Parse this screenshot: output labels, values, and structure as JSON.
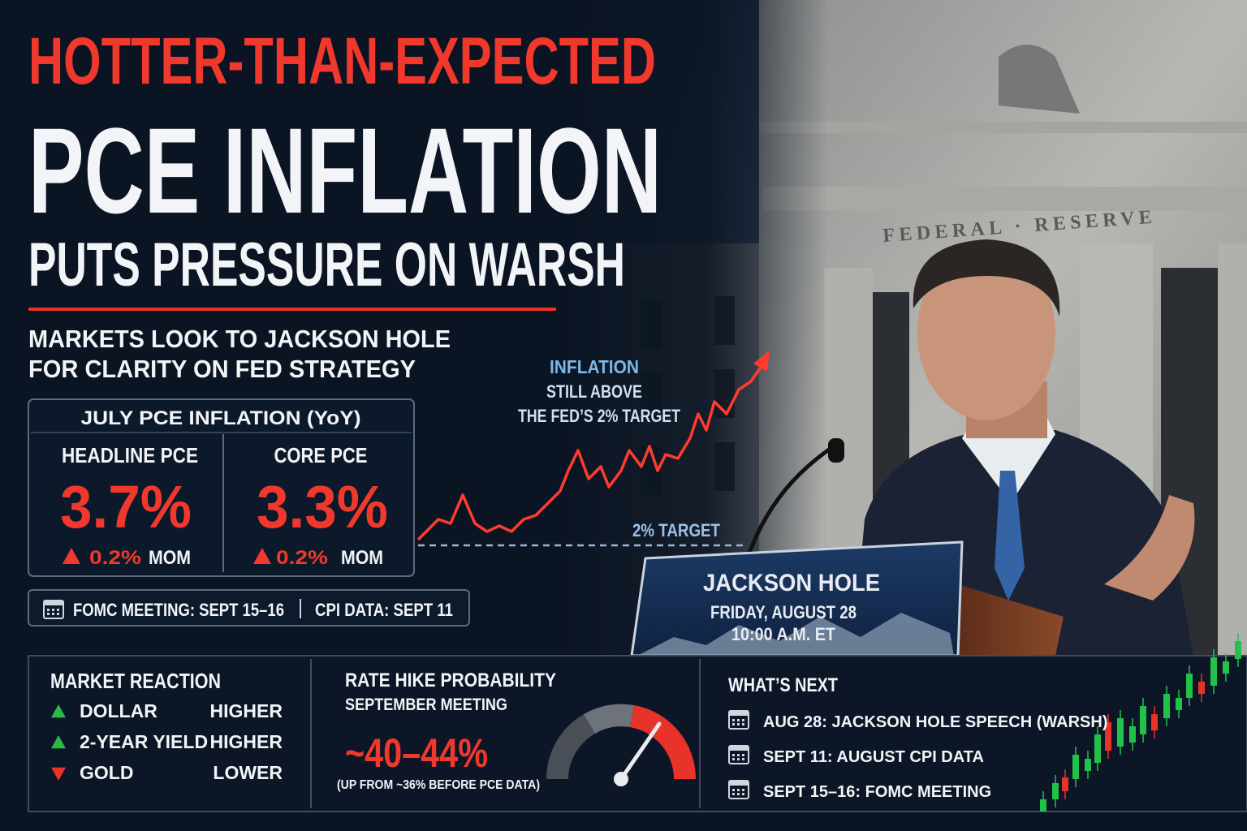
{
  "headline": {
    "line1": "HOTTER-THAN-EXPECTED",
    "line2": "PCE INFLATION",
    "line3": "PUTS PRESSURE ON WARSH"
  },
  "subheadline": {
    "line1": "MARKETS LOOK TO JACKSON HOLE",
    "line2": "FOR CLARITY ON FED STRATEGY"
  },
  "pce_box": {
    "title": "JULY PCE INFLATION (YoY)",
    "items": [
      {
        "label": "HEADLINE PCE",
        "value": "3.7%",
        "change": "0.2%",
        "change_unit": "MOM",
        "direction": "up"
      },
      {
        "label": "CORE PCE",
        "value": "3.3%",
        "change": "0.2%",
        "change_unit": "MOM",
        "direction": "up"
      }
    ]
  },
  "dates_bar": {
    "items": [
      "FOMC MEETING: SEPT 15–16",
      "CPI DATA: SEPT 11"
    ]
  },
  "chart_annotation": {
    "lines": [
      "INFLATION",
      "STILL ABOVE",
      "THE FED’S 2% TARGET"
    ],
    "target_label": "2% TARGET"
  },
  "photo": {
    "building_inscription": "FEDERAL · RESERVE",
    "sign": {
      "title": "JACKSON HOLE",
      "date": "FRIDAY, AUGUST 28",
      "time": "10:00 A.M. ET"
    }
  },
  "market_reaction": {
    "title": "MARKET REACTION",
    "rows": [
      {
        "asset": "DOLLAR",
        "move": "HIGHER",
        "direction": "up"
      },
      {
        "asset": "2-YEAR YIELD",
        "move": "HIGHER",
        "direction": "up"
      },
      {
        "asset": "GOLD",
        "move": "LOWER",
        "direction": "down"
      }
    ]
  },
  "rate_hike": {
    "title": "RATE HIKE PROBABILITY",
    "subtitle": "SEPTEMBER MEETING",
    "value": "~40–44%",
    "note": "(UP FROM ~36% BEFORE PCE DATA)"
  },
  "whats_next": {
    "title": "WHAT’S NEXT",
    "items": [
      "AUG 28: JACKSON HOLE SPEECH (WARSH)",
      "SEPT 11: AUGUST CPI DATA",
      "SEPT 15–16: FOMC MEETING"
    ]
  }
}
